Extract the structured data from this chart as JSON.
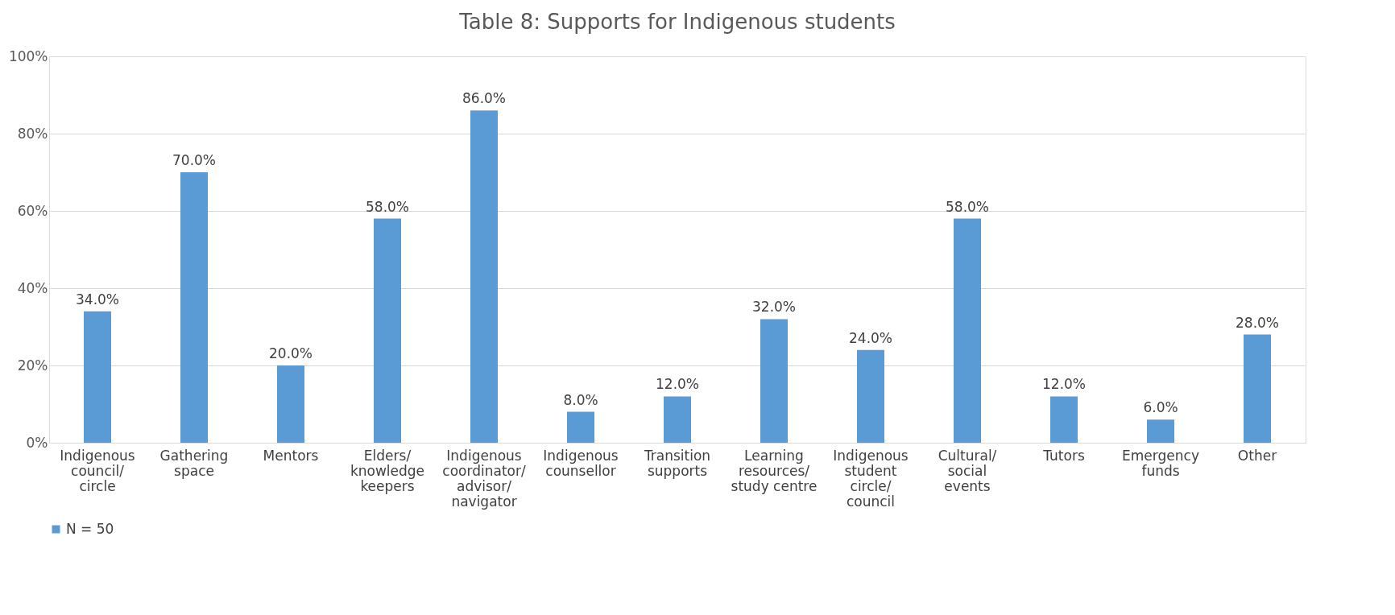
{
  "chart_data": {
    "type": "bar",
    "title": "Table 8: Supports for Indigenous students",
    "categories": [
      "Indigenous council/ circle",
      "Gathering space",
      "Mentors",
      "Elders/ knowledge keepers",
      "Indigenous coordinator/ advisor/ navigator",
      "Indigenous counsellor",
      "Transition supports",
      "Learning resources/ study centre",
      "Indigenous student circle/ council",
      "Cultural/ social events",
      "Tutors",
      "Emergency funds",
      "Other"
    ],
    "series": [
      {
        "name": "N = 50",
        "color": "#5b9bd5",
        "values": [
          34,
          70,
          20,
          58,
          86,
          8,
          12,
          32,
          24,
          58,
          12,
          6,
          28
        ],
        "value_labels": [
          "34.0%",
          "70.0%",
          "20.0%",
          "58.0%",
          "86.0%",
          "8.0%",
          "12.0%",
          "32.0%",
          "24.0%",
          "58.0%",
          "12.0%",
          "6.0%",
          "28.0%"
        ]
      }
    ],
    "ylim": [
      0,
      100
    ],
    "yticks": [
      {
        "value": 0,
        "label": "0%"
      },
      {
        "value": 20,
        "label": "20%"
      },
      {
        "value": 40,
        "label": "40%"
      },
      {
        "value": 60,
        "label": "60%"
      },
      {
        "value": 80,
        "label": "80%"
      },
      {
        "value": 100,
        "label": "100%"
      }
    ],
    "grid": "y",
    "legend": "bottom"
  }
}
